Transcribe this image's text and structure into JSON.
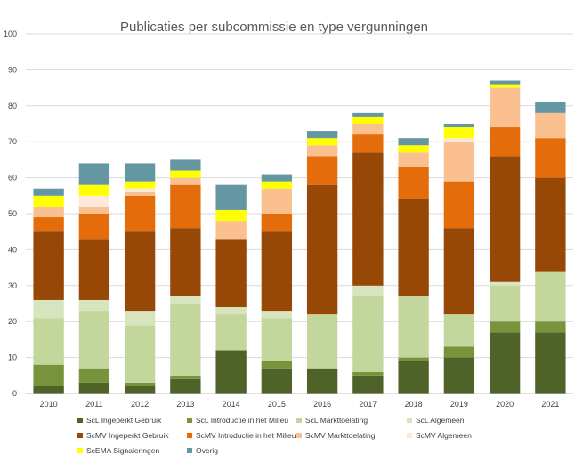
{
  "chart_data": {
    "type": "bar",
    "stacked": true,
    "title": "Publicaties per subcommissie en type vergunningen",
    "xlabel": "",
    "ylabel": "",
    "ylim": [
      0,
      100
    ],
    "yticks": [
      0,
      10,
      20,
      30,
      40,
      50,
      60,
      70,
      80,
      90,
      100
    ],
    "grid": true,
    "legend_position": "bottom",
    "categories": [
      "2010",
      "2011",
      "2012",
      "2013",
      "2014",
      "2015",
      "2016",
      "2017",
      "2018",
      "2019",
      "2020",
      "2021"
    ],
    "series": [
      {
        "name": "ScL Ingeperkt Gebruik",
        "color": "#4f6228",
        "values": [
          2,
          3,
          2,
          4,
          12,
          7,
          7,
          5,
          9,
          10,
          17,
          17
        ]
      },
      {
        "name": "ScL Introductie in het Milieu",
        "color": "#77933c",
        "values": [
          6,
          4,
          1,
          1,
          0,
          2,
          0,
          1,
          1,
          3,
          3,
          3
        ]
      },
      {
        "name": "ScL Markttoelating",
        "color": "#c3d69b",
        "values": [
          13,
          16,
          16,
          20,
          10,
          12,
          15,
          21,
          17,
          9,
          10,
          14
        ]
      },
      {
        "name": "ScL Algemeen",
        "color": "#d7e4bd",
        "values": [
          5,
          3,
          4,
          2,
          2,
          2,
          0,
          3,
          0,
          0,
          1,
          0
        ]
      },
      {
        "name": "ScMV Ingeperkt Gebruik",
        "color": "#974706",
        "values": [
          19,
          17,
          22,
          19,
          19,
          22,
          36,
          37,
          27,
          24,
          35,
          26
        ]
      },
      {
        "name": "ScMV Introductie in het Milieu",
        "color": "#e46c0a",
        "values": [
          4,
          7,
          10,
          12,
          0,
          5,
          8,
          5,
          9,
          13,
          8,
          11
        ]
      },
      {
        "name": "ScMV Markttoelating",
        "color": "#fac090",
        "values": [
          3,
          2,
          1,
          2,
          5,
          7,
          3,
          3,
          4,
          11,
          11,
          7
        ]
      },
      {
        "name": "ScMV Algemeen",
        "color": "#fde9d9",
        "values": [
          0,
          3,
          1,
          0,
          0,
          0,
          0,
          0,
          0,
          1,
          0,
          0
        ]
      },
      {
        "name": "ScEMA Signaleringen",
        "color": "#ffff00",
        "values": [
          3,
          3,
          2,
          2,
          3,
          2,
          2,
          2,
          2,
          3,
          1,
          0
        ]
      },
      {
        "name": "Overig",
        "color": "#6497a3",
        "values": [
          2,
          6,
          5,
          3,
          7,
          2,
          2,
          1,
          2,
          1,
          1,
          3
        ]
      }
    ]
  }
}
